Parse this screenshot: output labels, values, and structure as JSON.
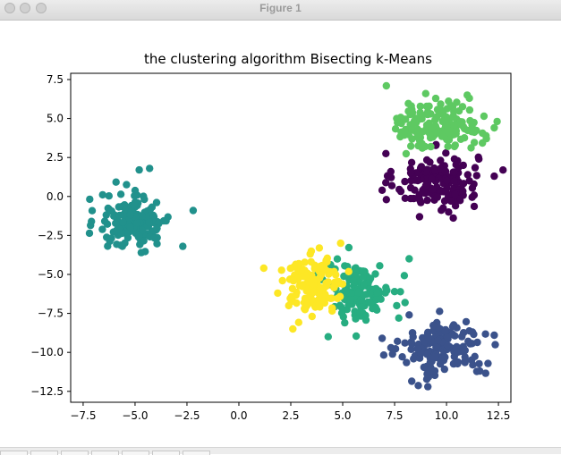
{
  "window": {
    "title": "Figure 1"
  },
  "toolbar": {
    "buttons": [
      "home-icon",
      "back-icon",
      "forward-icon",
      "pan-icon",
      "zoom-icon",
      "subplots-icon",
      "save-icon"
    ]
  },
  "chart_data": {
    "type": "scatter",
    "title": "the clustering algorithm Bisecting k-Means",
    "xlabel": "",
    "ylabel": "",
    "xlim": [
      -8.1,
      13.1
    ],
    "ylim": [
      -13.2,
      7.9
    ],
    "xticks": [
      -7.5,
      -5.0,
      -2.5,
      0.0,
      2.5,
      5.0,
      7.5,
      10.0,
      12.5
    ],
    "yticks": [
      7.5,
      5.0,
      2.5,
      0.0,
      -2.5,
      -5.0,
      -7.5,
      -10.0,
      -12.5
    ],
    "xtick_labels": [
      "−7.5",
      "−5.0",
      "−2.5",
      "0.0",
      "2.5",
      "5.0",
      "7.5",
      "10.0",
      "12.5"
    ],
    "ytick_labels": [
      "7.5",
      "5.0",
      "2.5",
      "0.0",
      "−2.5",
      "−5.0",
      "−7.5",
      "−10.0",
      "−12.5"
    ],
    "grid": false,
    "legend": "none",
    "series": [
      {
        "color": "#440154",
        "center": [
          9.5,
          1.0
        ],
        "spread": [
          1.0,
          0.9
        ],
        "count": 150,
        "points": [
          [
            6.9,
            0.4
          ],
          [
            11.1,
            1.0
          ],
          [
            12.3,
            1.3
          ],
          [
            7.1,
            -0.2
          ],
          [
            8.7,
            -1.3
          ],
          [
            10.1,
            -1.0
          ]
        ]
      },
      {
        "color": "#3b528b",
        "center": [
          9.8,
          -9.8
        ],
        "spread": [
          1.0,
          0.9
        ],
        "count": 150,
        "points": [
          [
            8.2,
            -7.6
          ],
          [
            6.9,
            -9.1
          ],
          [
            12.3,
            -8.9
          ],
          [
            9.1,
            -12.2
          ],
          [
            11.6,
            -11.2
          ],
          [
            8.0,
            -9.4
          ]
        ]
      },
      {
        "color": "#21918c",
        "center": [
          -5.0,
          -1.6
        ],
        "spread": [
          0.85,
          0.9
        ],
        "count": 150,
        "points": [
          [
            -4.3,
            1.8
          ],
          [
            -4.8,
            1.7
          ],
          [
            -2.2,
            -0.9
          ],
          [
            -2.7,
            -3.2
          ],
          [
            -7.1,
            -1.6
          ],
          [
            -4.7,
            -3.6
          ]
        ]
      },
      {
        "color": "#27ad81",
        "center": [
          5.8,
          -6.0
        ],
        "spread": [
          0.75,
          0.9
        ],
        "count": 140,
        "points": [
          [
            8.2,
            -4.0
          ],
          [
            4.3,
            -9.0
          ],
          [
            7.5,
            -6.1
          ],
          [
            7.6,
            -7.0
          ],
          [
            7.7,
            -7.8
          ],
          [
            5.1,
            -8.1
          ]
        ]
      },
      {
        "color": "#5ec962",
        "center": [
          9.6,
          4.6
        ],
        "spread": [
          1.0,
          0.75
        ],
        "count": 150,
        "points": [
          [
            7.1,
            7.1
          ],
          [
            9.0,
            6.6
          ],
          [
            12.3,
            4.4
          ],
          [
            11.9,
            3.9
          ],
          [
            7.6,
            5.0
          ],
          [
            11.1,
            6.3
          ]
        ]
      },
      {
        "color": "#fde725",
        "center": [
          3.6,
          -5.7
        ],
        "spread": [
          0.75,
          0.85
        ],
        "count": 140,
        "points": [
          [
            1.2,
            -4.6
          ],
          [
            2.6,
            -8.5
          ],
          [
            4.9,
            -3.0
          ],
          [
            2.4,
            -7.0
          ],
          [
            4.2,
            -4.1
          ],
          [
            2.1,
            -5.4
          ]
        ]
      }
    ]
  }
}
